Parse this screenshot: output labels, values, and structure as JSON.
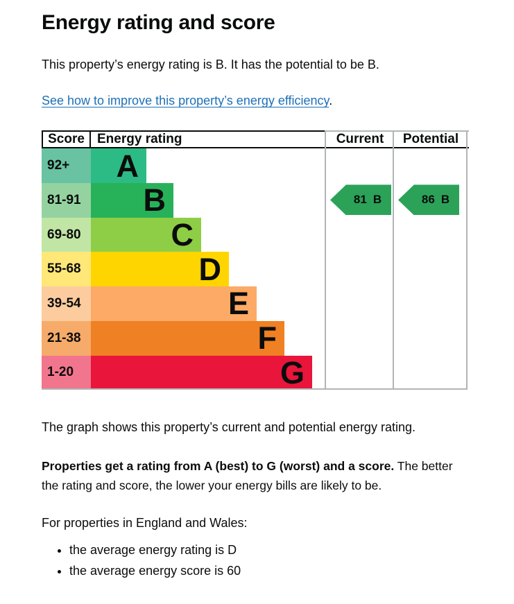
{
  "page": {
    "title": "Energy rating and score",
    "intro": "This property’s energy rating is B. It has the potential to be B.",
    "improve_link": "See how to improve this property’s energy efficiency",
    "improve_link_suffix": ".",
    "graph_caption": "The graph shows this property’s current and potential energy rating.",
    "explain_bold": "Properties get a rating from A (best) to G (worst) and a score.",
    "explain_rest": " The better the rating and score, the lower your energy bills are likely to be.",
    "region_intro": "For properties in England and Wales:",
    "bullets": [
      "the average energy rating is D",
      "the average energy score is 60"
    ]
  },
  "chart": {
    "headers": {
      "score": "Score",
      "rating": "Energy rating",
      "current": "Current",
      "potential": "Potential"
    },
    "bands": [
      {
        "range": "92+",
        "letter": "A",
        "bar_color": "#2cbb84",
        "cell_color": "#69c2a2"
      },
      {
        "range": "81-91",
        "letter": "B",
        "bar_color": "#27b25a",
        "cell_color": "#94d3a0"
      },
      {
        "range": "69-80",
        "letter": "C",
        "bar_color": "#8dce46",
        "cell_color": "#c0e5a4"
      },
      {
        "range": "55-68",
        "letter": "D",
        "bar_color": "#ffd500",
        "cell_color": "#ffe778"
      },
      {
        "range": "39-54",
        "letter": "E",
        "bar_color": "#fcaa65",
        "cell_color": "#fdcc9e"
      },
      {
        "range": "21-38",
        "letter": "F",
        "bar_color": "#ef8023",
        "cell_color": "#f6ab6a"
      },
      {
        "range": "1-20",
        "letter": "G",
        "bar_color": "#e9153b",
        "cell_color": "#f2758e"
      }
    ],
    "current": {
      "score": "81",
      "band": "B",
      "arrow_color": "#2ba258"
    },
    "potential": {
      "score": "86",
      "band": "B",
      "arrow_color": "#2ba258"
    },
    "text_color": "#0b0c0c",
    "link_color": "#1d70b8",
    "border_gray": "#b1b4b6"
  },
  "chart_data": {
    "type": "bar",
    "title": "Energy rating and score",
    "categories": [
      "A",
      "B",
      "C",
      "D",
      "E",
      "F",
      "G"
    ],
    "score_ranges": [
      "92+",
      "81-91",
      "69-80",
      "55-68",
      "39-54",
      "21-38",
      "1-20"
    ],
    "bar_relative_widths": [
      1,
      1.5,
      2,
      2.5,
      3,
      3.5,
      4
    ],
    "columns": [
      "Score",
      "Energy rating",
      "Current",
      "Potential"
    ],
    "current_rating": {
      "score": 81,
      "band": "B"
    },
    "potential_rating": {
      "score": 86,
      "band": "B"
    },
    "band_colors": [
      "#2cbb84",
      "#27b25a",
      "#8dce46",
      "#ffd500",
      "#fcaa65",
      "#ef8023",
      "#e9153b"
    ],
    "legend_position": "none",
    "grid": false
  }
}
